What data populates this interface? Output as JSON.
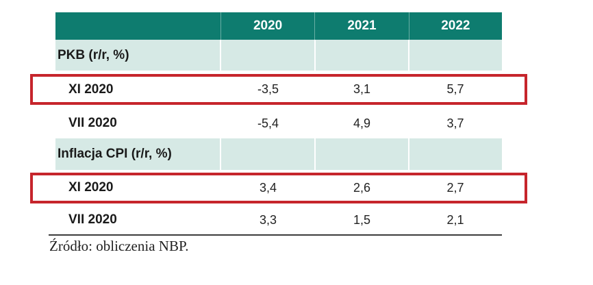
{
  "colors": {
    "header_teal": "#0e7c6f",
    "section_teal": "#d6e9e5",
    "highlight_red": "#c6252c",
    "rule_gray": "#3c3c3c",
    "header_text": "#ffffff",
    "body_text": "#1a1a1a"
  },
  "table": {
    "header": {
      "col0": "",
      "years": [
        "2020",
        "2021",
        "2022"
      ]
    },
    "sections": [
      {
        "label": "PKB (r/r, %)",
        "rows": [
          {
            "label": "XI 2020",
            "values": [
              "-3,5",
              "3,1",
              "5,7"
            ],
            "highlighted": true
          },
          {
            "label": "VII 2020",
            "values": [
              "-5,4",
              "4,9",
              "3,7"
            ],
            "highlighted": false
          }
        ]
      },
      {
        "label": "Inflacja CPI (r/r, %)",
        "rows": [
          {
            "label": "XI 2020",
            "values": [
              "3,4",
              "2,6",
              "2,7"
            ],
            "highlighted": true
          },
          {
            "label": "VII 2020",
            "values": [
              "3,3",
              "1,5",
              "2,1"
            ],
            "highlighted": false
          }
        ]
      }
    ]
  },
  "footnote": "Źródło: obliczenia NBP."
}
